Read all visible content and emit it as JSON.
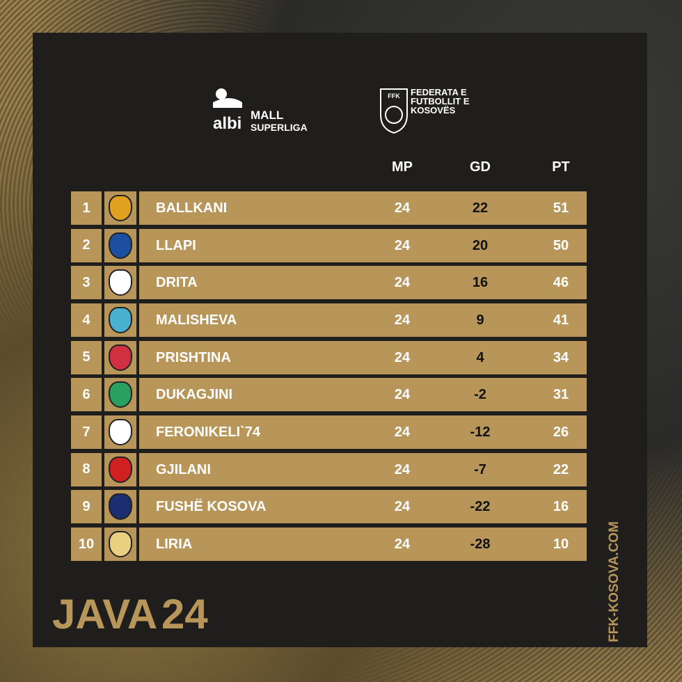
{
  "logos": {
    "league": {
      "brand": "albi",
      "line1": "MALL",
      "line2": "SUPERLIGA"
    },
    "federation": {
      "abbr": "FFK",
      "line1": "FEDERATA E",
      "line2": "FUTBOLLIT E",
      "line3": "KOSOVËS"
    }
  },
  "table": {
    "columns": [
      "MP",
      "GD",
      "PT"
    ],
    "rows": [
      [
        1,
        "BALLKANI",
        24,
        22,
        51
      ],
      [
        2,
        "LLAPI",
        24,
        20,
        50
      ],
      [
        3,
        "DRITA",
        24,
        16,
        46
      ],
      [
        4,
        "MALISHEVA",
        24,
        9,
        41
      ],
      [
        5,
        "PRISHTINA",
        24,
        4,
        34
      ],
      [
        6,
        "DUKAGJINI",
        24,
        -2,
        31
      ],
      [
        7,
        "FERONIKELI`74",
        24,
        -12,
        26
      ],
      [
        8,
        "GJILANI",
        24,
        -7,
        22
      ],
      [
        9,
        "FUSHË KOSOVA",
        24,
        -22,
        16
      ],
      [
        10,
        "LIRIA",
        24,
        -28,
        10
      ]
    ]
  },
  "footer": {
    "label": "JAVA",
    "week": "24",
    "website": "FFK-KOSOVA.COM"
  }
}
